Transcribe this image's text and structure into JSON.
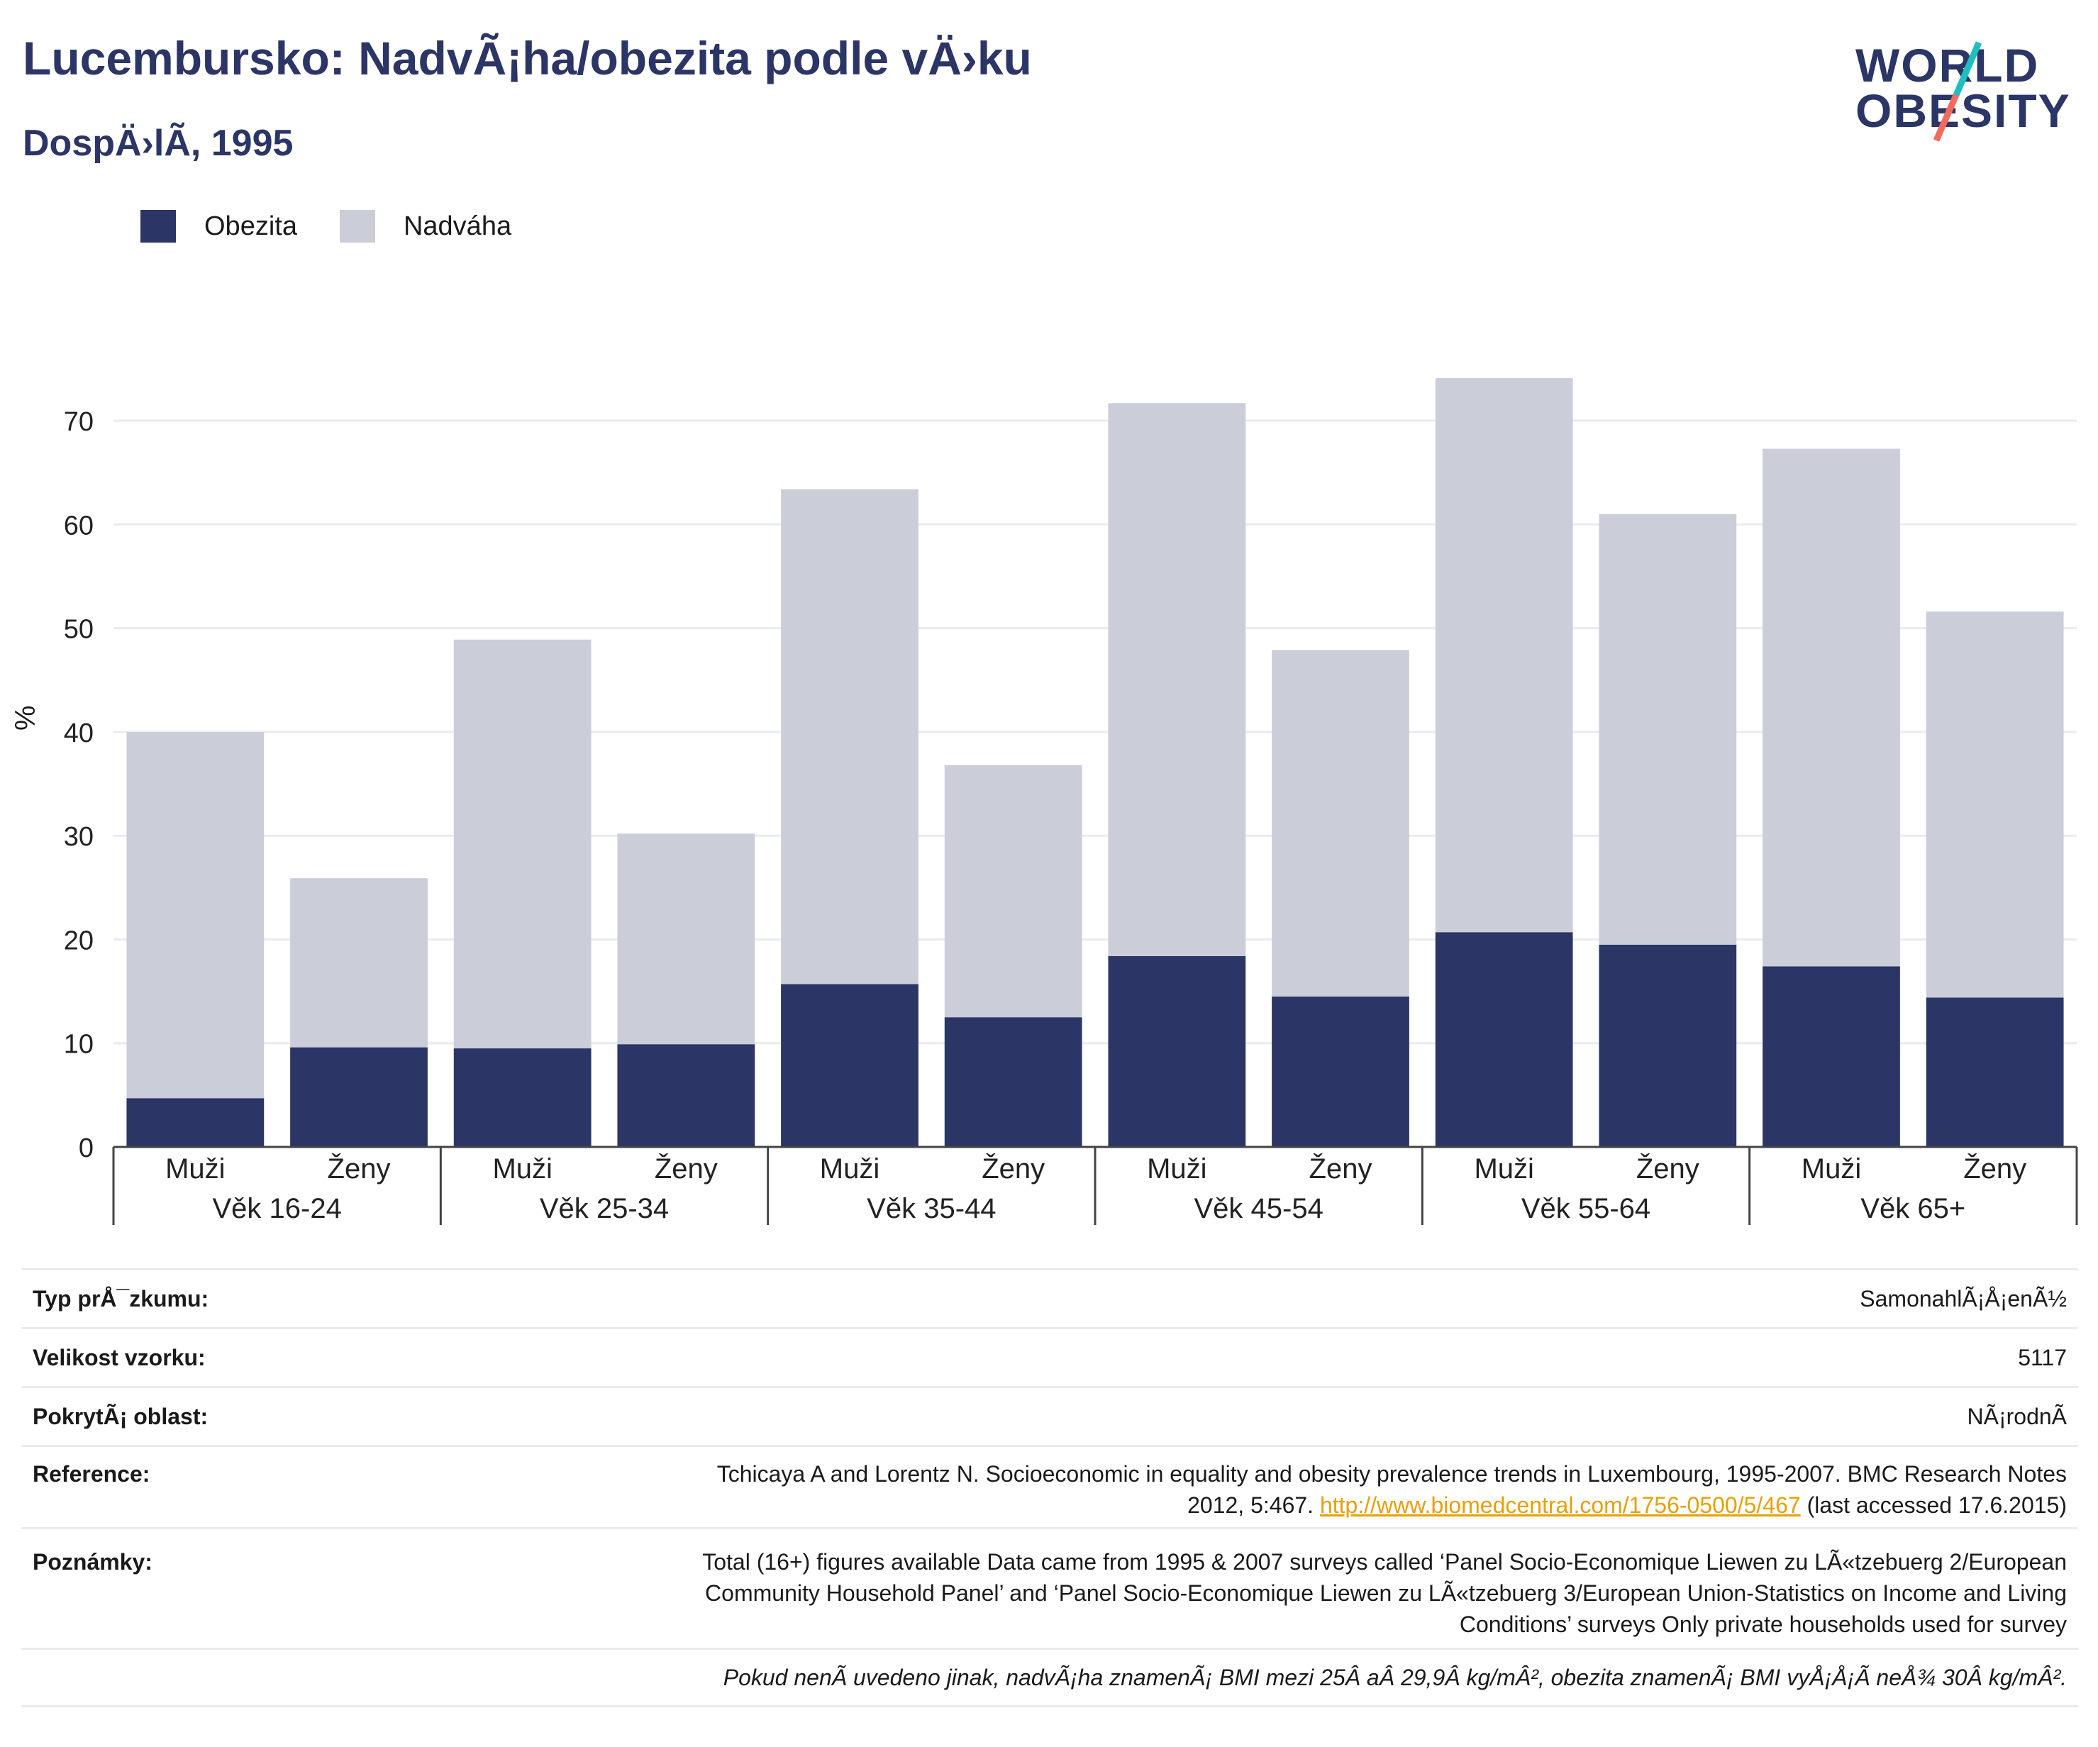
{
  "header": {
    "title": "Lucembursko: NadvÃ¡ha/obezita podle vÄ›ku",
    "subtitle": "DospÄ›lÃ­, 1995"
  },
  "logo": {
    "line1": "WORLD",
    "line2": "OBESITY"
  },
  "colors": {
    "obesity": "#2b3566",
    "overweight": "#cbcdd8",
    "accent_teal": "#1fbfbf",
    "accent_coral": "#f06b5b"
  },
  "legend": {
    "obesity": "Obezita",
    "overweight": "Nadváha"
  },
  "chart_data": {
    "type": "bar",
    "stacked": true,
    "ylabel": "%",
    "ylim": [
      0,
      75
    ],
    "yticks": [
      0,
      10,
      20,
      30,
      40,
      50,
      60,
      70
    ],
    "grid": true,
    "legend_position": "top-left",
    "groups": [
      "Věk 16-24",
      "Věk 25-34",
      "Věk 35-44",
      "Věk 45-54",
      "Věk 55-64",
      "Věk 65+"
    ],
    "subcategories": [
      "Muži",
      "Ženy"
    ],
    "series": [
      {
        "name": "Obezita",
        "values": [
          4.7,
          9.6,
          9.5,
          9.9,
          15.7,
          12.5,
          18.4,
          14.5,
          20.7,
          19.5,
          17.4,
          14.4
        ]
      },
      {
        "name": "Nadváha",
        "values": [
          35.3,
          16.3,
          39.4,
          20.3,
          47.7,
          24.3,
          53.3,
          33.4,
          53.4,
          41.5,
          49.9,
          37.2
        ]
      }
    ]
  },
  "info": {
    "survey_type_label": "Typ prÅ¯zkumu:",
    "survey_type_value": "SamonahlÃ¡Å¡enÃ½",
    "sample_size_label": "Velikost vzorku:",
    "sample_size_value": "5117",
    "coverage_label": "PokrytÃ¡ oblast:",
    "coverage_value": "NÃ¡rodnÃ",
    "reference_label": "Reference:",
    "reference_line1": "Tchicaya A and Lorentz N. Socioeconomic in equality and obesity prevalence trends in Luxembourg, 1995-2007. BMC Research Notes",
    "reference_line2_pre": "2012, 5:467. ",
    "reference_link": "http://www.biomedcentral.com/1756-0500/5/467",
    "reference_line2_post": " (last accessed 17.6.2015)",
    "notes_label": "Poznámky:",
    "notes_line1": "Total (16+) figures available Data came from 1995 & 2007 surveys called ‘Panel Socio-Economique Liewen zu LÃ«tzebuerg 2/European",
    "notes_line2": "Community Household Panel’ and ‘Panel Socio-Economique Liewen zu LÃ«tzebuerg 3/European Union-Statistics on Income and Living",
    "notes_line3": "Conditions’ surveys Only private households used for survey",
    "footnote": "Pokud nenÃ uvedeno jinak, nadvÃ¡ha znamenÃ¡ BMI mezi 25Â aÂ 29,9Â kg/mÂ², obezita znamenÃ¡ BMI vyÅ¡Å¡Ã neÅ¾ 30Â kg/mÂ²."
  }
}
